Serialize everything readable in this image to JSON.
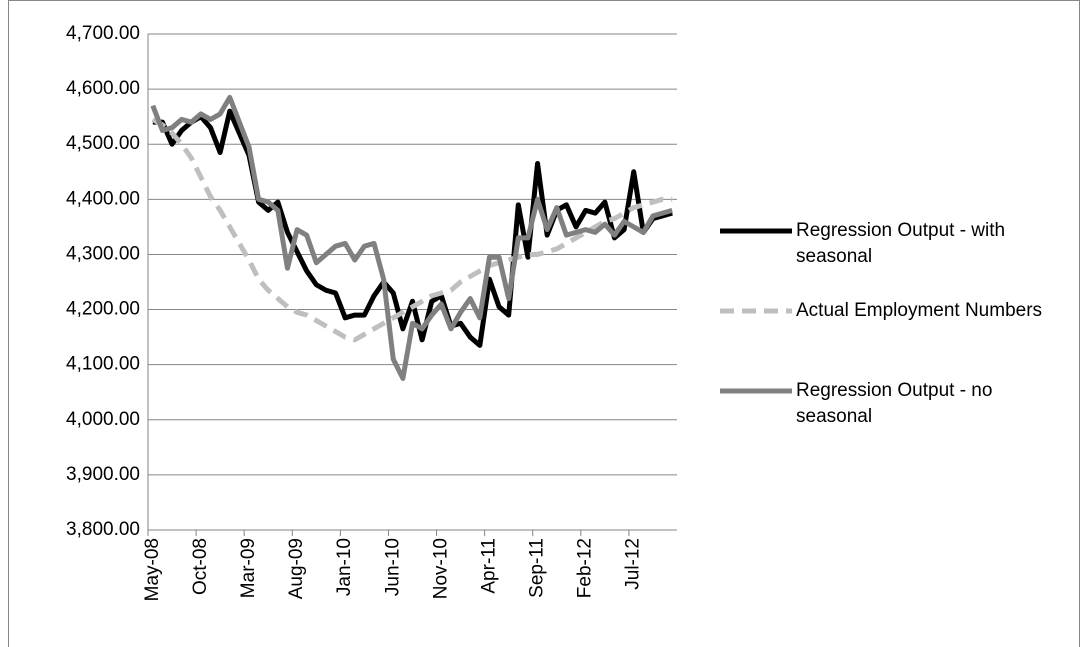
{
  "chart_data": {
    "type": "line",
    "categories": [
      "May-08",
      null,
      null,
      null,
      null,
      "Oct-08",
      null,
      null,
      null,
      null,
      "Mar-09",
      null,
      null,
      null,
      null,
      "Aug-09",
      null,
      null,
      null,
      null,
      "Jan-10",
      null,
      null,
      null,
      null,
      "Jun-10",
      null,
      null,
      null,
      null,
      "Nov-10",
      null,
      null,
      null,
      null,
      "Apr-11",
      null,
      null,
      null,
      null,
      "Sep-11",
      null,
      null,
      null,
      null,
      "Feb-12",
      null,
      null,
      null,
      null,
      "Jul-12",
      null,
      null,
      null,
      null
    ],
    "series": [
      {
        "name": "Regression Output - with seasonal",
        "color": "#000000",
        "dash": false,
        "values": [
          4540,
          4540,
          4500,
          4525,
          4540,
          4550,
          4530,
          4485,
          4560,
          4520,
          4480,
          4395,
          4380,
          4395,
          4340,
          4305,
          4270,
          4245,
          4235,
          4230,
          4185,
          4190,
          4190,
          4225,
          4250,
          4230,
          4165,
          4215,
          4145,
          4215,
          4225,
          4170,
          4175,
          4150,
          4135,
          4255,
          4205,
          4190,
          4390,
          4295,
          4465,
          4335,
          4380,
          4390,
          4350,
          4380,
          4375,
          4395,
          4330,
          4345,
          4450,
          4340,
          4365,
          4370,
          4375
        ]
      },
      {
        "name": "Actual Employment Numbers",
        "color": "#bfbfbf",
        "dash": true,
        "values": [
          4545,
          4535,
          4520,
          4500,
          4475,
          4440,
          4405,
          4380,
          4350,
          4320,
          4290,
          4255,
          4235,
          4220,
          4205,
          4195,
          4190,
          4180,
          4170,
          4160,
          4150,
          4145,
          4155,
          4165,
          4175,
          4185,
          4195,
          4205,
          4215,
          4225,
          4230,
          4235,
          4250,
          4260,
          4270,
          4280,
          4285,
          4290,
          4295,
          4300,
          4300,
          4305,
          4310,
          4320,
          4330,
          4340,
          4350,
          4360,
          4365,
          4375,
          4385,
          4390,
          4395,
          4400,
          4400
        ]
      },
      {
        "name": "Regression Output - no seasonal",
        "color": "#808080",
        "dash": false,
        "values": [
          4570,
          4525,
          4530,
          4545,
          4540,
          4555,
          4545,
          4555,
          4585,
          4540,
          4495,
          4400,
          4395,
          4380,
          4275,
          4345,
          4335,
          4285,
          4300,
          4315,
          4320,
          4290,
          4315,
          4320,
          4255,
          4110,
          4075,
          4175,
          4165,
          4190,
          4210,
          4165,
          4195,
          4220,
          4185,
          4295,
          4295,
          4220,
          4330,
          4330,
          4400,
          4345,
          4385,
          4335,
          4340,
          4345,
          4340,
          4355,
          4335,
          4360,
          4350,
          4340,
          4370,
          4375,
          4380
        ]
      }
    ],
    "ylim": [
      3800,
      4700
    ],
    "yticks": [
      {
        "value": 3800,
        "label": "3,800.00"
      },
      {
        "value": 3900,
        "label": "3,900.00"
      },
      {
        "value": 4000,
        "label": "4,000.00"
      },
      {
        "value": 4100,
        "label": "4,100.00"
      },
      {
        "value": 4200,
        "label": "4,200.00"
      },
      {
        "value": 4300,
        "label": "4,300.00"
      },
      {
        "value": 4400,
        "label": "4,400.00"
      },
      {
        "value": 4500,
        "label": "4,500.00"
      },
      {
        "value": 4600,
        "label": "4,600.00"
      },
      {
        "value": 4700,
        "label": "4,700.00"
      }
    ],
    "grid": true,
    "legend": "right"
  }
}
